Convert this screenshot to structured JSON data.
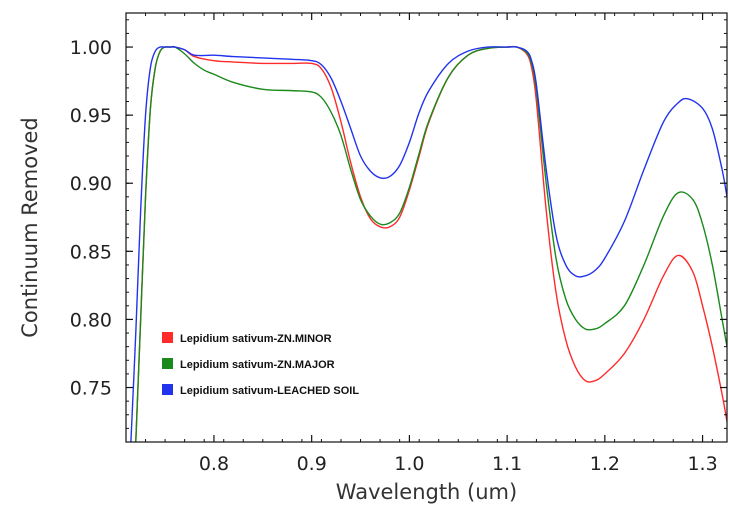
{
  "chart_data": {
    "type": "line",
    "xlabel": "Wavelength (um)",
    "ylabel": "Continuum Removed",
    "xlim": [
      0.71,
      1.325
    ],
    "ylim": [
      0.71,
      1.025
    ],
    "x_ticks": [
      0.8,
      0.9,
      1.0,
      1.1,
      1.2,
      1.3
    ],
    "x_tick_labels": [
      "0.8",
      "0.9",
      "1.0",
      "1.1",
      "1.2",
      "1.3"
    ],
    "y_ticks": [
      0.75,
      0.8,
      0.85,
      0.9,
      0.95,
      1.0
    ],
    "y_tick_labels": [
      "0.75",
      "0.80",
      "0.85",
      "0.90",
      "0.95",
      "1.00"
    ],
    "legend_position": "bottom-left",
    "grid": false,
    "series": [
      {
        "name": "Lepidium sativum-ZN.MINOR",
        "color": "#ff2a2a",
        "x": [
          0.72,
          0.725,
          0.73,
          0.735,
          0.74,
          0.745,
          0.75,
          0.755,
          0.76,
          0.77,
          0.78,
          0.8,
          0.82,
          0.85,
          0.88,
          0.9,
          0.91,
          0.92,
          0.93,
          0.94,
          0.95,
          0.96,
          0.97,
          0.98,
          0.99,
          1.0,
          1.01,
          1.02,
          1.04,
          1.06,
          1.08,
          1.1,
          1.11,
          1.12,
          1.125,
          1.13,
          1.14,
          1.15,
          1.16,
          1.17,
          1.18,
          1.19,
          1.2,
          1.22,
          1.24,
          1.26,
          1.275,
          1.29,
          1.3,
          1.31,
          1.32,
          1.325
        ],
        "y": [
          0.71,
          0.8,
          0.89,
          0.955,
          0.985,
          0.997,
          1.0,
          1.0,
          1.0,
          0.998,
          0.993,
          0.99,
          0.989,
          0.988,
          0.988,
          0.988,
          0.984,
          0.97,
          0.945,
          0.915,
          0.89,
          0.874,
          0.868,
          0.868,
          0.875,
          0.895,
          0.92,
          0.945,
          0.978,
          0.994,
          0.999,
          1.0,
          1.0,
          0.995,
          0.985,
          0.96,
          0.88,
          0.82,
          0.785,
          0.765,
          0.755,
          0.755,
          0.76,
          0.775,
          0.8,
          0.832,
          0.847,
          0.835,
          0.81,
          0.78,
          0.745,
          0.725
        ]
      },
      {
        "name": "Lepidium sativum-ZN.MAJOR",
        "color": "#1a8a1a",
        "x": [
          0.72,
          0.725,
          0.73,
          0.735,
          0.74,
          0.745,
          0.75,
          0.755,
          0.76,
          0.77,
          0.78,
          0.79,
          0.8,
          0.82,
          0.85,
          0.88,
          0.9,
          0.91,
          0.92,
          0.93,
          0.94,
          0.95,
          0.96,
          0.97,
          0.98,
          0.99,
          1.0,
          1.01,
          1.02,
          1.04,
          1.06,
          1.08,
          1.1,
          1.11,
          1.12,
          1.125,
          1.13,
          1.14,
          1.15,
          1.16,
          1.17,
          1.18,
          1.19,
          1.2,
          1.22,
          1.24,
          1.26,
          1.275,
          1.29,
          1.3,
          1.31,
          1.32,
          1.325
        ],
        "y": [
          0.71,
          0.8,
          0.89,
          0.955,
          0.985,
          0.997,
          1.0,
          1.0,
          1.0,
          0.995,
          0.988,
          0.983,
          0.98,
          0.974,
          0.969,
          0.968,
          0.967,
          0.963,
          0.952,
          0.935,
          0.91,
          0.888,
          0.876,
          0.87,
          0.871,
          0.878,
          0.897,
          0.922,
          0.946,
          0.978,
          0.994,
          0.999,
          1.0,
          1.0,
          0.996,
          0.988,
          0.968,
          0.9,
          0.845,
          0.815,
          0.8,
          0.793,
          0.793,
          0.797,
          0.81,
          0.84,
          0.876,
          0.893,
          0.888,
          0.87,
          0.84,
          0.8,
          0.78
        ]
      },
      {
        "name": "Lepidium sativum-LEACHED SOIL",
        "color": "#2233ee",
        "x": [
          0.715,
          0.72,
          0.725,
          0.73,
          0.735,
          0.74,
          0.745,
          0.75,
          0.755,
          0.76,
          0.77,
          0.78,
          0.8,
          0.82,
          0.85,
          0.88,
          0.9,
          0.91,
          0.92,
          0.93,
          0.94,
          0.95,
          0.96,
          0.97,
          0.98,
          0.99,
          1.0,
          1.01,
          1.02,
          1.04,
          1.06,
          1.08,
          1.1,
          1.11,
          1.12,
          1.125,
          1.13,
          1.14,
          1.15,
          1.16,
          1.17,
          1.18,
          1.19,
          1.2,
          1.22,
          1.24,
          1.26,
          1.275,
          1.285,
          1.3,
          1.31,
          1.32,
          1.325
        ],
        "y": [
          0.71,
          0.79,
          0.88,
          0.95,
          0.985,
          0.997,
          1.0,
          1.0,
          1.0,
          1.0,
          0.998,
          0.994,
          0.994,
          0.993,
          0.992,
          0.991,
          0.99,
          0.987,
          0.977,
          0.96,
          0.94,
          0.92,
          0.909,
          0.904,
          0.905,
          0.913,
          0.93,
          0.952,
          0.968,
          0.988,
          0.997,
          1.0,
          1.0,
          1.0,
          0.997,
          0.99,
          0.972,
          0.91,
          0.862,
          0.84,
          0.832,
          0.832,
          0.836,
          0.845,
          0.872,
          0.91,
          0.945,
          0.959,
          0.962,
          0.955,
          0.94,
          0.91,
          0.89
        ]
      }
    ]
  }
}
